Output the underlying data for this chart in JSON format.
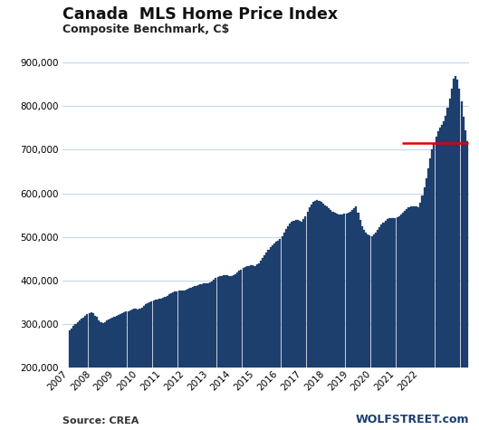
{
  "title": "Canada  MLS Home Price Index",
  "subtitle": "Composite Benchmark, C$",
  "source_left": "Source: CREA",
  "source_right": "WOLFSTREET.com",
  "bar_color": "#1c3f6e",
  "background_color": "#ffffff",
  "red_line_value": 716000,
  "red_line_color": "#e00000",
  "red_line_xstart": 2021.25,
  "ylim": [
    200000,
    930000
  ],
  "yticks": [
    200000,
    300000,
    400000,
    500000,
    600000,
    700000,
    800000,
    900000
  ],
  "grid_color": "#c5d8e8",
  "x_tick_years": [
    2007,
    2008,
    2009,
    2010,
    2011,
    2012,
    2013,
    2014,
    2015,
    2016,
    2017,
    2018,
    2019,
    2020,
    2021,
    2022
  ],
  "values": [
    285000,
    290000,
    295000,
    300000,
    305000,
    308000,
    312000,
    315000,
    318000,
    322000,
    325000,
    326000,
    325000,
    318000,
    316000,
    308000,
    305000,
    303000,
    305000,
    308000,
    310000,
    312000,
    315000,
    316000,
    318000,
    320000,
    322000,
    325000,
    326000,
    328000,
    330000,
    332000,
    334000,
    335000,
    335000,
    334000,
    335000,
    338000,
    342000,
    345000,
    348000,
    350000,
    352000,
    354000,
    356000,
    357000,
    358000,
    358000,
    360000,
    362000,
    365000,
    368000,
    370000,
    372000,
    374000,
    375000,
    376000,
    377000,
    377000,
    377000,
    378000,
    380000,
    383000,
    385000,
    387000,
    388000,
    390000,
    391000,
    392000,
    393000,
    393000,
    393000,
    395000,
    398000,
    402000,
    405000,
    408000,
    410000,
    411000,
    412000,
    412000,
    412000,
    411000,
    410000,
    412000,
    415000,
    418000,
    422000,
    425000,
    428000,
    430000,
    432000,
    433000,
    434000,
    434000,
    433000,
    436000,
    440000,
    446000,
    452000,
    458000,
    464000,
    470000,
    476000,
    480000,
    484000,
    488000,
    490000,
    495000,
    502000,
    510000,
    518000,
    525000,
    530000,
    534000,
    537000,
    538000,
    538000,
    537000,
    535000,
    540000,
    548000,
    558000,
    568000,
    575000,
    580000,
    583000,
    584000,
    583000,
    580000,
    576000,
    572000,
    570000,
    566000,
    562000,
    558000,
    555000,
    553000,
    552000,
    552000,
    552000,
    553000,
    554000,
    555000,
    558000,
    562000,
    566000,
    570000,
    555000,
    538000,
    525000,
    516000,
    510000,
    506000,
    503000,
    502000,
    505000,
    510000,
    516000,
    522000,
    528000,
    533000,
    537000,
    540000,
    542000,
    543000,
    543000,
    543000,
    545000,
    548000,
    552000,
    556000,
    560000,
    564000,
    567000,
    569000,
    570000,
    570000,
    570000,
    568000,
    578000,
    595000,
    614000,
    635000,
    658000,
    680000,
    700000,
    716000,
    730000,
    742000,
    750000,
    756000,
    765000,
    778000,
    796000,
    818000,
    840000,
    862000,
    868000,
    860000,
    840000,
    810000,
    775000,
    745000,
    720000
  ]
}
